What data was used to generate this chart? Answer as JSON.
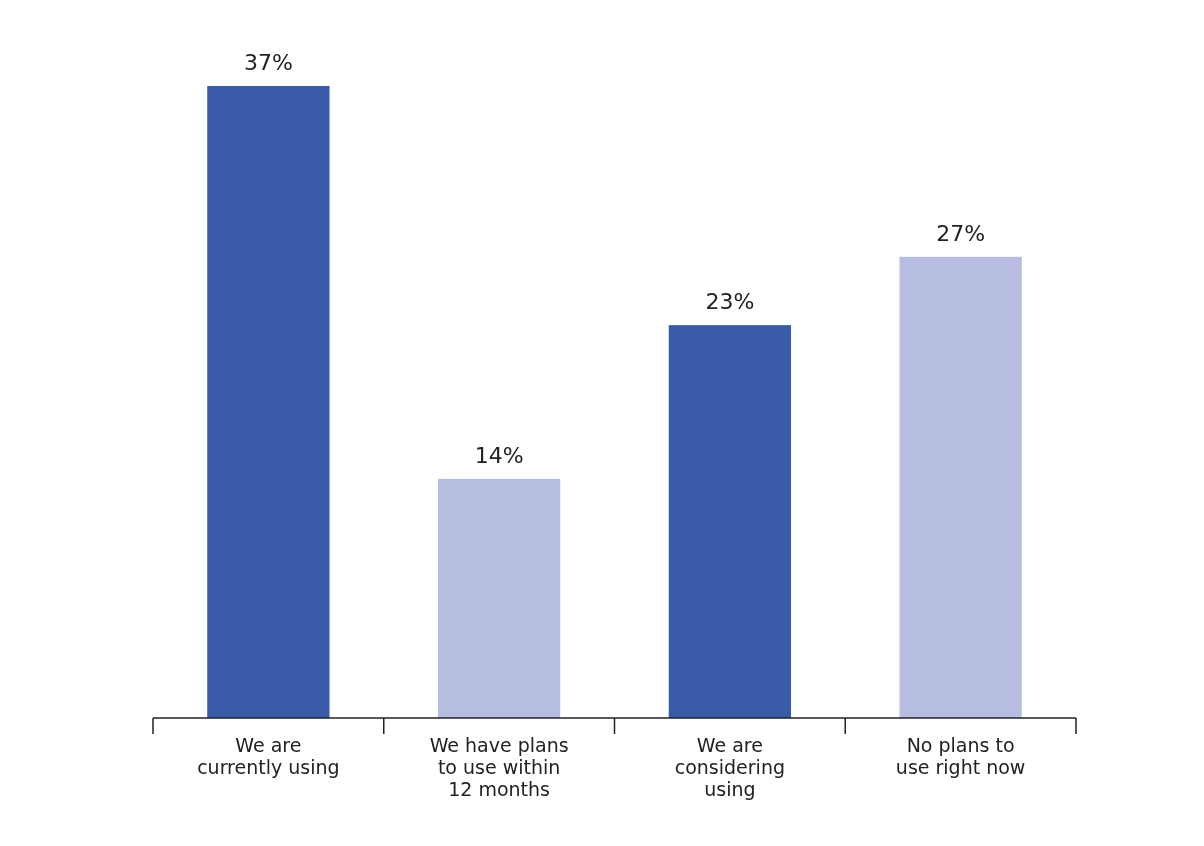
{
  "chart_data": {
    "type": "bar",
    "categories": [
      "We are\ncurrently using",
      "We have plans\nto use within\n12 months",
      "We are\nconsidering\nusing",
      "No plans to\nuse right now"
    ],
    "values": [
      37,
      14,
      23,
      27
    ],
    "colors": [
      "#3a5ca8",
      "#b6bde0",
      "#3a5ca8",
      "#b6bde0"
    ],
    "value_labels": [
      "37%",
      "14%",
      "23%",
      "27%"
    ]
  }
}
